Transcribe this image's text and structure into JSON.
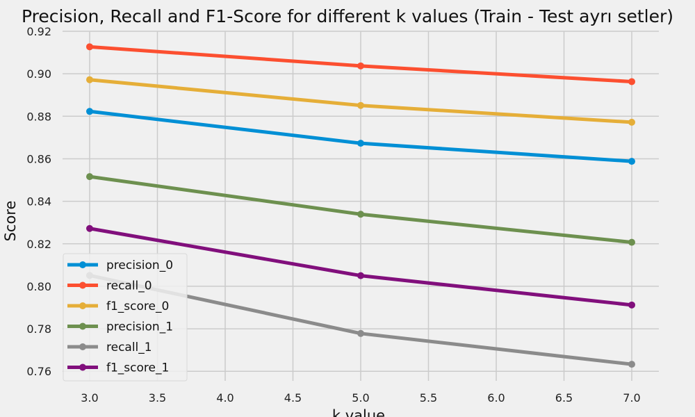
{
  "chart_data": {
    "type": "line",
    "title": "Precision, Recall and F1-Score for different k values (Train - Test ayrı setler)",
    "xlabel": "k value",
    "ylabel": "Score",
    "x": [
      3,
      5,
      7
    ],
    "xlim": [
      2.8,
      7.2
    ],
    "ylim": [
      0.7555,
      0.92
    ],
    "xticks": [
      3.0,
      3.5,
      4.0,
      4.5,
      5.0,
      5.5,
      6.0,
      6.5,
      7.0
    ],
    "xtick_labels": [
      "3.0",
      "3.5",
      "4.0",
      "4.5",
      "5.0",
      "5.5",
      "6.0",
      "6.5",
      "7.0"
    ],
    "yticks": [
      0.76,
      0.78,
      0.8,
      0.82,
      0.84,
      0.86,
      0.88,
      0.9,
      0.92
    ],
    "ytick_labels": [
      "0.76",
      "0.78",
      "0.80",
      "0.82",
      "0.84",
      "0.86",
      "0.88",
      "0.90",
      "0.92"
    ],
    "grid": true,
    "legend_position": "lower-left",
    "series": [
      {
        "name": "precision_0",
        "color": "#008fd5",
        "values": [
          0.8823,
          0.8673,
          0.8588
        ]
      },
      {
        "name": "recall_0",
        "color": "#fc4f30",
        "values": [
          0.9127,
          0.9037,
          0.8963
        ]
      },
      {
        "name": "f1_score_0",
        "color": "#e5ae38",
        "values": [
          0.8972,
          0.8851,
          0.8772
        ]
      },
      {
        "name": "precision_1",
        "color": "#6d904f",
        "values": [
          0.8516,
          0.8339,
          0.8207
        ]
      },
      {
        "name": "recall_1",
        "color": "#8b8b8b",
        "values": [
          0.8051,
          0.7778,
          0.7633
        ]
      },
      {
        "name": "f1_score_1",
        "color": "#810f7c",
        "values": [
          0.8272,
          0.805,
          0.7912
        ]
      }
    ]
  }
}
